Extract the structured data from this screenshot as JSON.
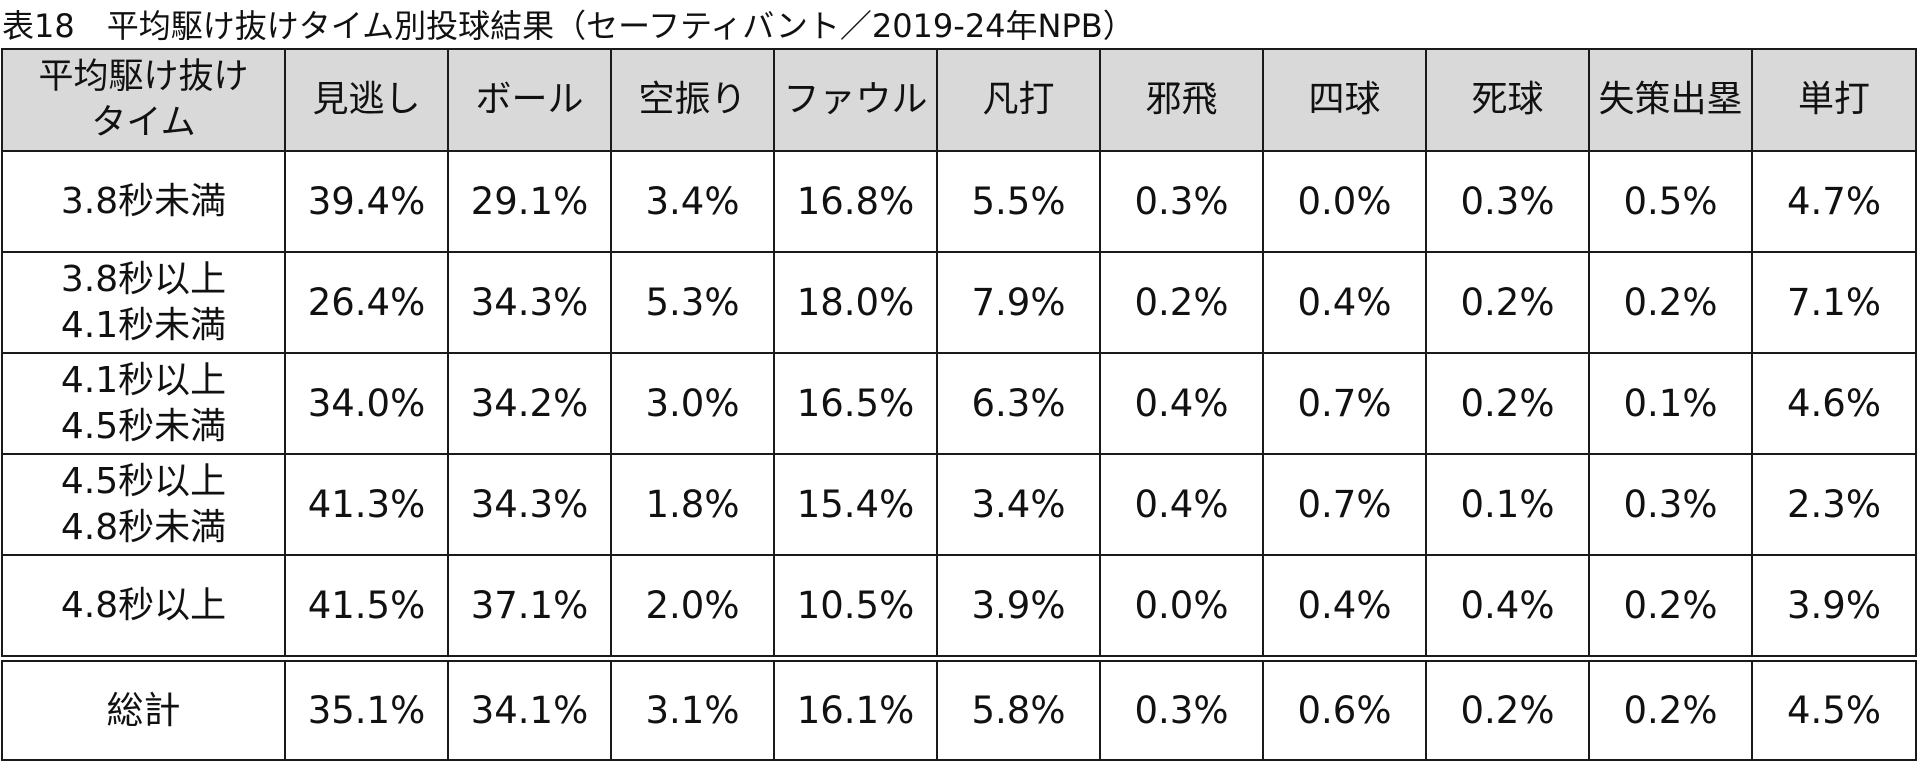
{
  "title": "表18　平均駆け抜けタイム別投球結果（セーフティバント／2019-24年NPB）",
  "table": {
    "corner_header": [
      "平均駆け抜け",
      "タイム"
    ],
    "columns": [
      "見逃し",
      "ボール",
      "空振り",
      "ファウル",
      "凡打",
      "邪飛",
      "四球",
      "死球",
      "失策出塁",
      "単打"
    ],
    "rows": [
      {
        "label": [
          "3.8秒未満"
        ],
        "values": [
          "39.4%",
          "29.1%",
          "3.4%",
          "16.8%",
          "5.5%",
          "0.3%",
          "0.0%",
          "0.3%",
          "0.5%",
          "4.7%"
        ]
      },
      {
        "label": [
          "3.8秒以上",
          "4.1秒未満"
        ],
        "values": [
          "26.4%",
          "34.3%",
          "5.3%",
          "18.0%",
          "7.9%",
          "0.2%",
          "0.4%",
          "0.2%",
          "0.2%",
          "7.1%"
        ]
      },
      {
        "label": [
          "4.1秒以上",
          "4.5秒未満"
        ],
        "values": [
          "34.0%",
          "34.2%",
          "3.0%",
          "16.5%",
          "6.3%",
          "0.4%",
          "0.7%",
          "0.2%",
          "0.1%",
          "4.6%"
        ]
      },
      {
        "label": [
          "4.5秒以上",
          "4.8秒未満"
        ],
        "values": [
          "41.3%",
          "34.3%",
          "1.8%",
          "15.4%",
          "3.4%",
          "0.4%",
          "0.7%",
          "0.1%",
          "0.3%",
          "2.3%"
        ]
      },
      {
        "label": [
          "4.8秒以上"
        ],
        "values": [
          "41.5%",
          "37.1%",
          "2.0%",
          "10.5%",
          "3.9%",
          "0.0%",
          "0.4%",
          "0.4%",
          "0.2%",
          "3.9%"
        ]
      }
    ],
    "total": {
      "label": "総計",
      "values": [
        "35.1%",
        "34.1%",
        "3.1%",
        "16.1%",
        "5.8%",
        "0.3%",
        "0.6%",
        "0.2%",
        "0.2%",
        "4.5%"
      ]
    }
  }
}
